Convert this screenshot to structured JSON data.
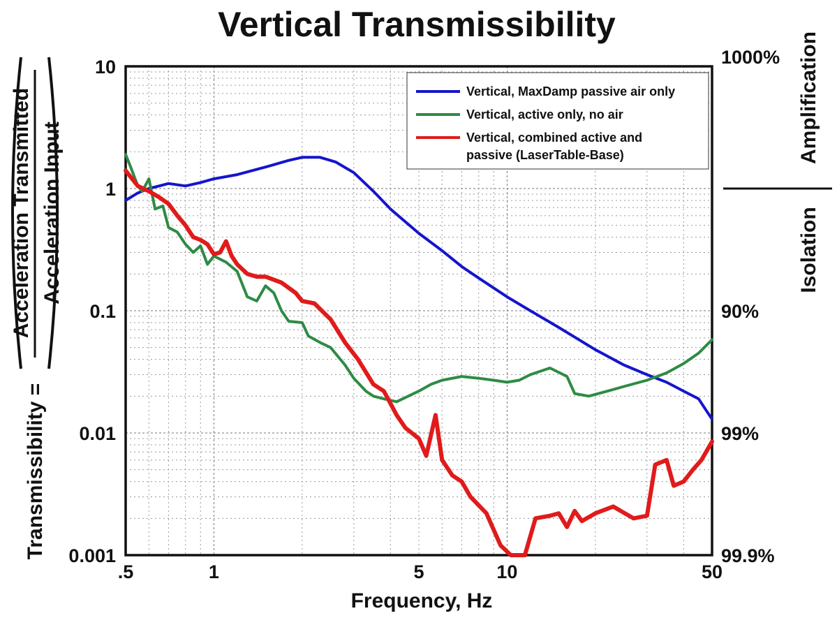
{
  "chart_data": {
    "type": "line",
    "title": "Vertical Transmissibility",
    "xlabel": "Frequency, Hz",
    "ylabel_prefix": "Transmissibility =",
    "ylabel_numerator": "Acceleration Transmitted",
    "ylabel_denominator": "Acceleration Input",
    "xscale": "log",
    "yscale": "log",
    "xlim": [
      0.5,
      50
    ],
    "ylim": [
      0.001,
      10
    ],
    "grid": true,
    "x_ticks": [
      0.5,
      1,
      5,
      10,
      50
    ],
    "x_tick_labels": [
      ".5",
      "1",
      "5",
      "10",
      "50"
    ],
    "y_ticks": [
      0.001,
      0.01,
      0.1,
      1,
      10
    ],
    "y_tick_labels": [
      "0.001",
      "0.01",
      "0.1",
      "1",
      "10"
    ],
    "right_axis": {
      "labels": [
        {
          "y": 10,
          "text": "1000%"
        },
        {
          "y": 0.1,
          "text": "90%"
        },
        {
          "y": 0.01,
          "text": "99%"
        },
        {
          "y": 0.001,
          "text": "99.9%"
        }
      ],
      "upper_region": "Amplification",
      "lower_region": "Isolation",
      "divider_y": 1
    },
    "legend_position": "top-right",
    "series": [
      {
        "name": "Vertical, MaxDamp passive air only",
        "color": "#1515cc",
        "points": [
          [
            0.5,
            0.8
          ],
          [
            0.55,
            0.92
          ],
          [
            0.6,
            1.0
          ],
          [
            0.65,
            1.05
          ],
          [
            0.7,
            1.1
          ],
          [
            0.8,
            1.05
          ],
          [
            0.9,
            1.12
          ],
          [
            1.0,
            1.2
          ],
          [
            1.2,
            1.3
          ],
          [
            1.5,
            1.5
          ],
          [
            1.8,
            1.7
          ],
          [
            2.0,
            1.8
          ],
          [
            2.3,
            1.8
          ],
          [
            2.6,
            1.65
          ],
          [
            3.0,
            1.35
          ],
          [
            3.5,
            0.95
          ],
          [
            4.0,
            0.68
          ],
          [
            5.0,
            0.43
          ],
          [
            6.0,
            0.31
          ],
          [
            7.0,
            0.23
          ],
          [
            8.0,
            0.185
          ],
          [
            10.0,
            0.13
          ],
          [
            12.0,
            0.1
          ],
          [
            15.0,
            0.073
          ],
          [
            20.0,
            0.048
          ],
          [
            25.0,
            0.036
          ],
          [
            30.0,
            0.03
          ],
          [
            35.0,
            0.026
          ],
          [
            40.0,
            0.022
          ],
          [
            45.0,
            0.019
          ],
          [
            48.0,
            0.015
          ],
          [
            50.0,
            0.013
          ]
        ]
      },
      {
        "name": "Vertical, active only, no air",
        "color": "#2e8b45",
        "points": [
          [
            0.5,
            1.9
          ],
          [
            0.52,
            1.5
          ],
          [
            0.55,
            1.05
          ],
          [
            0.57,
            0.95
          ],
          [
            0.6,
            1.2
          ],
          [
            0.63,
            0.68
          ],
          [
            0.67,
            0.72
          ],
          [
            0.7,
            0.48
          ],
          [
            0.75,
            0.44
          ],
          [
            0.8,
            0.35
          ],
          [
            0.85,
            0.3
          ],
          [
            0.9,
            0.34
          ],
          [
            0.95,
            0.24
          ],
          [
            1.0,
            0.28
          ],
          [
            1.1,
            0.25
          ],
          [
            1.2,
            0.21
          ],
          [
            1.3,
            0.13
          ],
          [
            1.4,
            0.12
          ],
          [
            1.5,
            0.16
          ],
          [
            1.6,
            0.14
          ],
          [
            1.7,
            0.1
          ],
          [
            1.8,
            0.082
          ],
          [
            2.0,
            0.08
          ],
          [
            2.1,
            0.062
          ],
          [
            2.3,
            0.055
          ],
          [
            2.5,
            0.05
          ],
          [
            2.8,
            0.036
          ],
          [
            3.0,
            0.028
          ],
          [
            3.3,
            0.022
          ],
          [
            3.5,
            0.02
          ],
          [
            3.8,
            0.019
          ],
          [
            4.2,
            0.018
          ],
          [
            4.6,
            0.02
          ],
          [
            5.0,
            0.022
          ],
          [
            5.5,
            0.025
          ],
          [
            6.0,
            0.027
          ],
          [
            7.0,
            0.029
          ],
          [
            8.0,
            0.028
          ],
          [
            9.0,
            0.027
          ],
          [
            10.0,
            0.026
          ],
          [
            11.0,
            0.027
          ],
          [
            12.0,
            0.03
          ],
          [
            14.0,
            0.034
          ],
          [
            16.0,
            0.029
          ],
          [
            17.0,
            0.021
          ],
          [
            19.0,
            0.02
          ],
          [
            22.0,
            0.022
          ],
          [
            25.0,
            0.024
          ],
          [
            30.0,
            0.027
          ],
          [
            35.0,
            0.031
          ],
          [
            40.0,
            0.037
          ],
          [
            45.0,
            0.045
          ],
          [
            50.0,
            0.058
          ]
        ]
      },
      {
        "name": "Vertical, combined active and passive (LaserTable-Base)",
        "color": "#e01b1b",
        "points": [
          [
            0.5,
            1.4
          ],
          [
            0.55,
            1.05
          ],
          [
            0.6,
            0.95
          ],
          [
            0.65,
            0.85
          ],
          [
            0.7,
            0.75
          ],
          [
            0.75,
            0.6
          ],
          [
            0.8,
            0.5
          ],
          [
            0.85,
            0.4
          ],
          [
            0.9,
            0.38
          ],
          [
            0.95,
            0.35
          ],
          [
            1.0,
            0.29
          ],
          [
            1.05,
            0.3
          ],
          [
            1.1,
            0.37
          ],
          [
            1.15,
            0.28
          ],
          [
            1.2,
            0.24
          ],
          [
            1.3,
            0.2
          ],
          [
            1.4,
            0.19
          ],
          [
            1.5,
            0.19
          ],
          [
            1.7,
            0.17
          ],
          [
            1.9,
            0.14
          ],
          [
            2.0,
            0.12
          ],
          [
            2.2,
            0.115
          ],
          [
            2.5,
            0.085
          ],
          [
            2.8,
            0.055
          ],
          [
            3.1,
            0.04
          ],
          [
            3.5,
            0.025
          ],
          [
            3.8,
            0.022
          ],
          [
            4.2,
            0.014
          ],
          [
            4.5,
            0.011
          ],
          [
            5.0,
            0.009
          ],
          [
            5.3,
            0.0065
          ],
          [
            5.7,
            0.014
          ],
          [
            6.0,
            0.006
          ],
          [
            6.5,
            0.0045
          ],
          [
            7.0,
            0.004
          ],
          [
            7.5,
            0.003
          ],
          [
            8.5,
            0.0022
          ],
          [
            9.5,
            0.0012
          ],
          [
            10.3,
            0.001
          ],
          [
            11.5,
            0.001
          ],
          [
            12.5,
            0.002
          ],
          [
            14.0,
            0.0021
          ],
          [
            15.0,
            0.0022
          ],
          [
            16.0,
            0.0017
          ],
          [
            17.0,
            0.0023
          ],
          [
            18.0,
            0.0019
          ],
          [
            20.0,
            0.0022
          ],
          [
            23.0,
            0.0025
          ],
          [
            27.0,
            0.002
          ],
          [
            30.0,
            0.0021
          ],
          [
            32.0,
            0.0055
          ],
          [
            35.0,
            0.006
          ],
          [
            37.0,
            0.0037
          ],
          [
            40.0,
            0.004
          ],
          [
            43.0,
            0.005
          ],
          [
            46.0,
            0.006
          ],
          [
            50.0,
            0.0085
          ]
        ]
      }
    ]
  }
}
